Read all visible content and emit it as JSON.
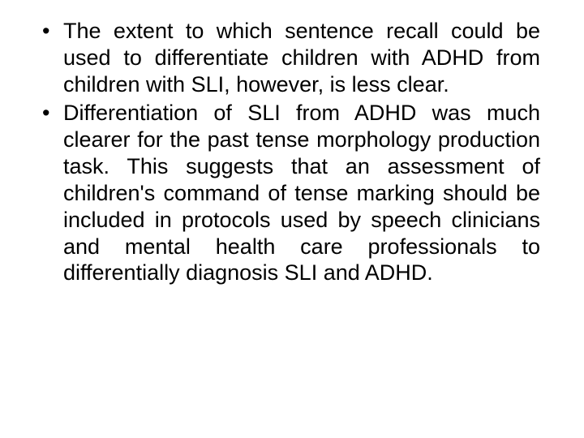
{
  "slide": {
    "background_color": "#ffffff",
    "text_color": "#000000",
    "font_family": "Arial",
    "font_size_pt": 20,
    "text_align": "justify",
    "bullet_glyph": "•",
    "bullets": [
      "The extent to which sentence recall could be used to differentiate children with ADHD from children with SLI, however, is less clear.",
      "Differentiation of SLI from ADHD was much clearer for the past tense morphology production task. This suggests that an assessment of children's command of tense marking should be included in protocols used by speech clinicians and mental health care professionals to differentially diagnosis SLI and ADHD."
    ]
  }
}
